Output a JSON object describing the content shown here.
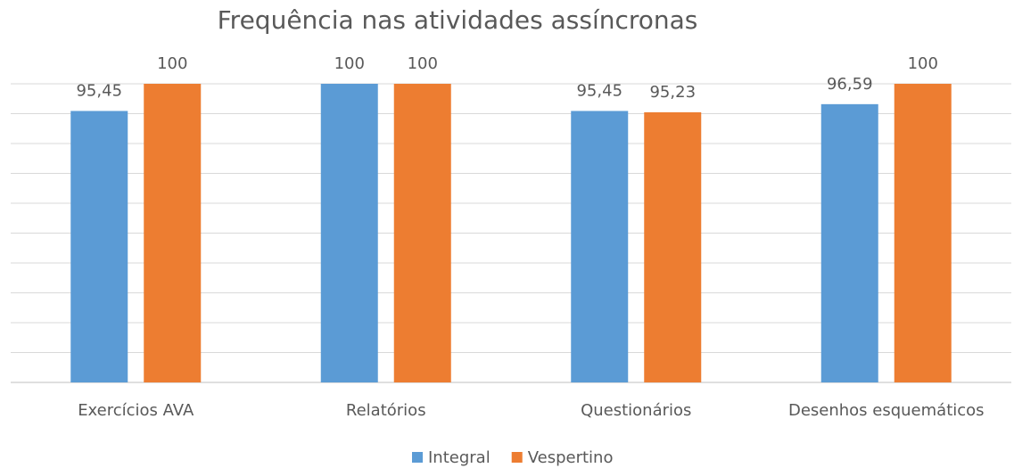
{
  "chart_data": {
    "type": "bar",
    "title": "Frequência nas atividades assíncronas",
    "categories": [
      "Exercícios AVA",
      "Relatórios",
      "Questionários",
      "Desenhos esquemáticos"
    ],
    "series": [
      {
        "name": "Integral",
        "color": "#5b9bd5",
        "values": [
          95.45,
          100,
          95.45,
          96.59
        ],
        "value_labels": [
          "95,45",
          "100",
          "95,45",
          "96,59"
        ]
      },
      {
        "name": "Vespertino",
        "color": "#ed7d31",
        "values": [
          100,
          100,
          95.23,
          100
        ],
        "value_labels": [
          "100",
          "100",
          "95,23",
          "100"
        ]
      }
    ],
    "ylim": [
      50,
      100
    ],
    "yticks": [
      50,
      55,
      60,
      65,
      70,
      75,
      80,
      85,
      90,
      95,
      100
    ],
    "grid": true,
    "legend": "bottom"
  }
}
